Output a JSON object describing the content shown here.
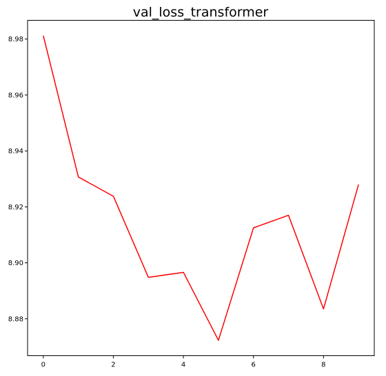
{
  "chart_data": {
    "type": "line",
    "title": "val_loss_transformer",
    "xlabel": "",
    "ylabel": "",
    "x": [
      0,
      1,
      2,
      3,
      4,
      5,
      6,
      7,
      8,
      9
    ],
    "series": [
      {
        "values": [
          8.9812,
          8.9307,
          8.9238,
          8.8948,
          8.8966,
          8.8723,
          8.9125,
          8.917,
          8.8835,
          8.928
        ],
        "color": "#ff0000"
      }
    ],
    "xlim": [
      -0.45,
      9.45
    ],
    "ylim": [
      8.8668,
      8.9867
    ],
    "xticks": [
      0,
      2,
      4,
      6,
      8
    ],
    "yticks": [
      8.88,
      8.9,
      8.92,
      8.94,
      8.96,
      8.98
    ],
    "xtick_labels": [
      "0",
      "2",
      "4",
      "6",
      "8"
    ],
    "ytick_labels": [
      "8.88",
      "8.90",
      "8.92",
      "8.94",
      "8.96",
      "8.98"
    ],
    "grid": false,
    "legend": "none"
  }
}
